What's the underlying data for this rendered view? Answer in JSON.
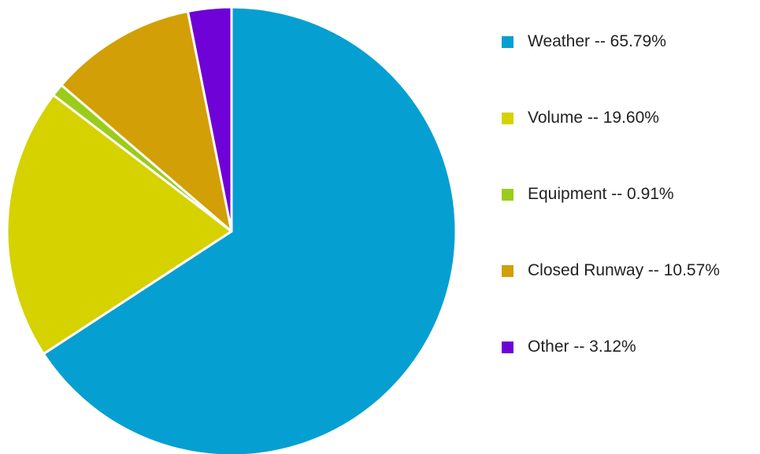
{
  "chart_data": {
    "type": "pie",
    "title": "",
    "slices": [
      {
        "label": "Weather",
        "value": 65.79,
        "color": "#069fd1",
        "legend_text": "Weather -- 65.79%"
      },
      {
        "label": "Volume",
        "value": 19.6,
        "color": "#d6d200",
        "legend_text": "Volume -- 19.60%"
      },
      {
        "label": "Equipment",
        "value": 0.91,
        "color": "#9bcc1a",
        "legend_text": "Equipment -- 0.91%"
      },
      {
        "label": "Closed Runway",
        "value": 10.57,
        "color": "#d29f06",
        "legend_text": "Closed Runway -- 10.57%"
      },
      {
        "label": "Other",
        "value": 3.12,
        "color": "#6f02d6",
        "legend_text": "Other -- 3.12%"
      }
    ],
    "start_angle": "12 o'clock",
    "direction": "clockwise",
    "legend_position": "right"
  }
}
